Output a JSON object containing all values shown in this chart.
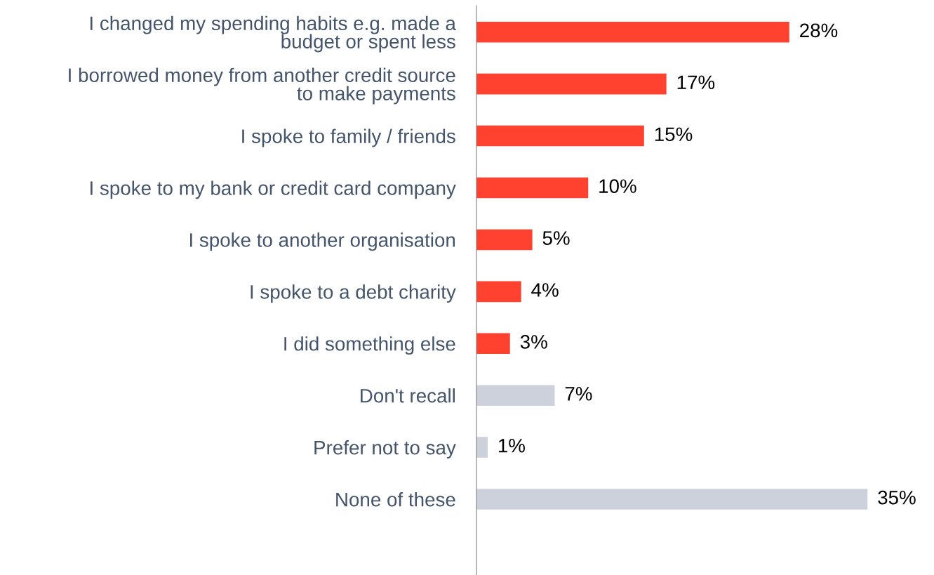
{
  "chart_data": {
    "type": "bar",
    "orientation": "horizontal",
    "categories": [
      "I changed my spending habits e.g. made a\nbudget or spent less",
      "I borrowed money from another credit source\nto make payments",
      "I spoke to family / friends",
      "I spoke to my bank or credit card company",
      "I spoke to another organisation",
      "I spoke to a debt charity",
      "I did something else",
      "Don't recall",
      "Prefer not to say",
      "None of these"
    ],
    "values": [
      28,
      17,
      15,
      10,
      5,
      4,
      3,
      7,
      1,
      35
    ],
    "value_labels": [
      "28%",
      "17%",
      "15%",
      "10%",
      "5%",
      "4%",
      "3%",
      "7%",
      "1%",
      "35%"
    ],
    "colors": [
      "#ff4130",
      "#ff4130",
      "#ff4130",
      "#ff4130",
      "#ff4130",
      "#ff4130",
      "#ff4130",
      "#cdd1dc",
      "#cdd1dc",
      "#cdd1dc"
    ],
    "grid": false,
    "legend": false
  }
}
